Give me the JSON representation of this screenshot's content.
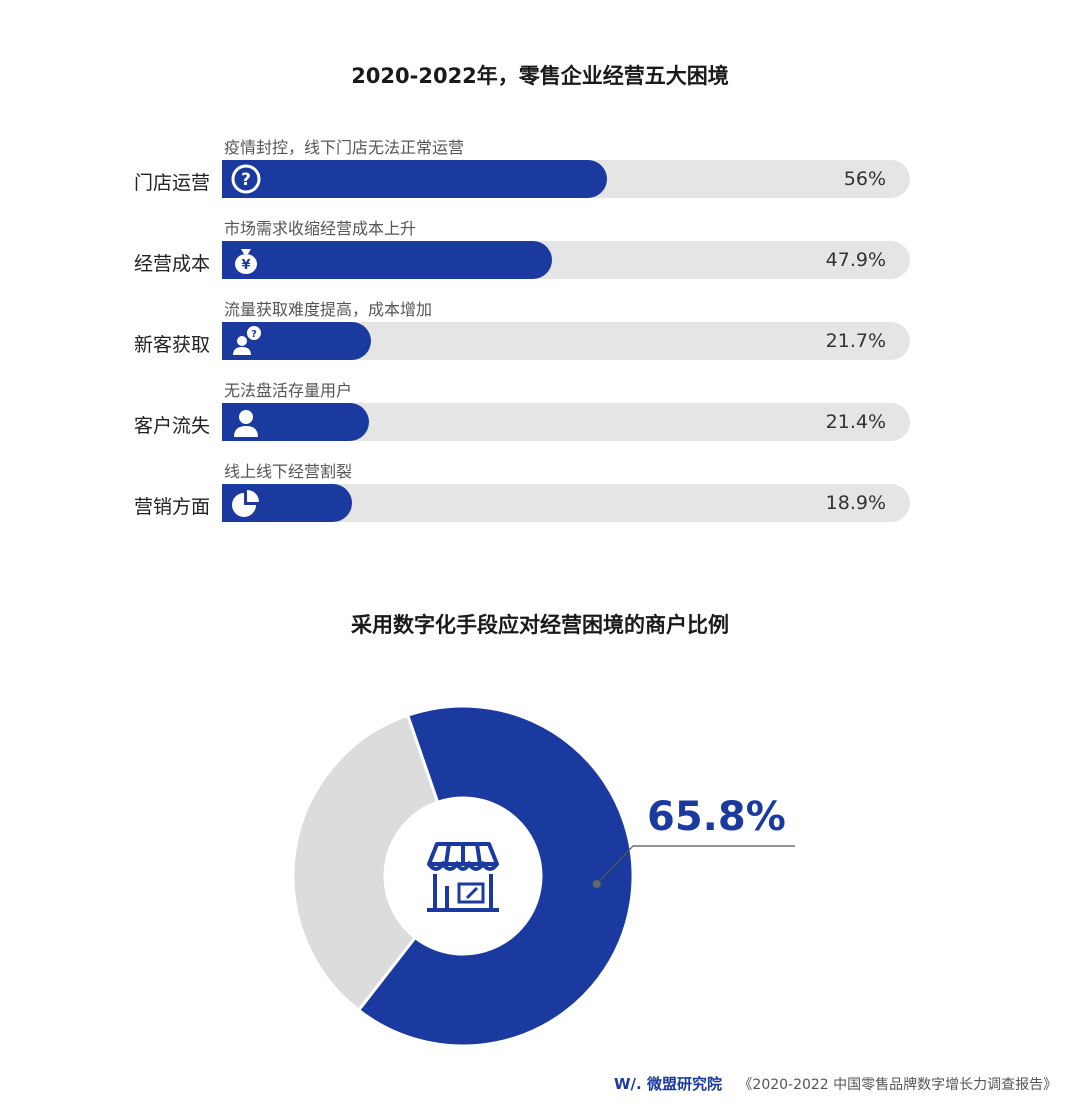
{
  "chart_data": [
    {
      "type": "bar",
      "title": "2020-2022年，零售企业经营五大困境",
      "categories": [
        "门店运营",
        "经营成本",
        "新客获取",
        "客户流失",
        "营销方面"
      ],
      "descriptions": [
        "疫情封控，线下门店无法正常运营",
        "市场需求收缩经营成本上升",
        "流量获取难度提高，成本增加",
        "无法盘活存量用户",
        "线上线下经营割裂"
      ],
      "values": [
        56,
        47.9,
        21.7,
        21.4,
        18.9
      ],
      "value_labels": [
        "56%",
        "47.9%",
        "21.7%",
        "21.4%",
        "18.9%"
      ],
      "icons": [
        "question-icon",
        "money-bag-icon",
        "user-question-icon",
        "user-icon",
        "pie-chart-icon"
      ],
      "xlim": [
        0,
        100
      ],
      "grid": false
    },
    {
      "type": "pie",
      "title": "采用数字化手段应对经营困境的商户比例",
      "values": [
        65.8,
        34.2
      ],
      "value_label": "65.8%",
      "center_icon": "store-icon",
      "donut": true
    }
  ],
  "footer": {
    "logo": "W/. 微盟研究院",
    "report": "《2020-2022 中国零售品牌数字增长力调查报告》"
  },
  "colors": {
    "primary": "#1b3a9f",
    "track": "#e5e5e5",
    "secondary_slice": "#dcdcdc"
  }
}
